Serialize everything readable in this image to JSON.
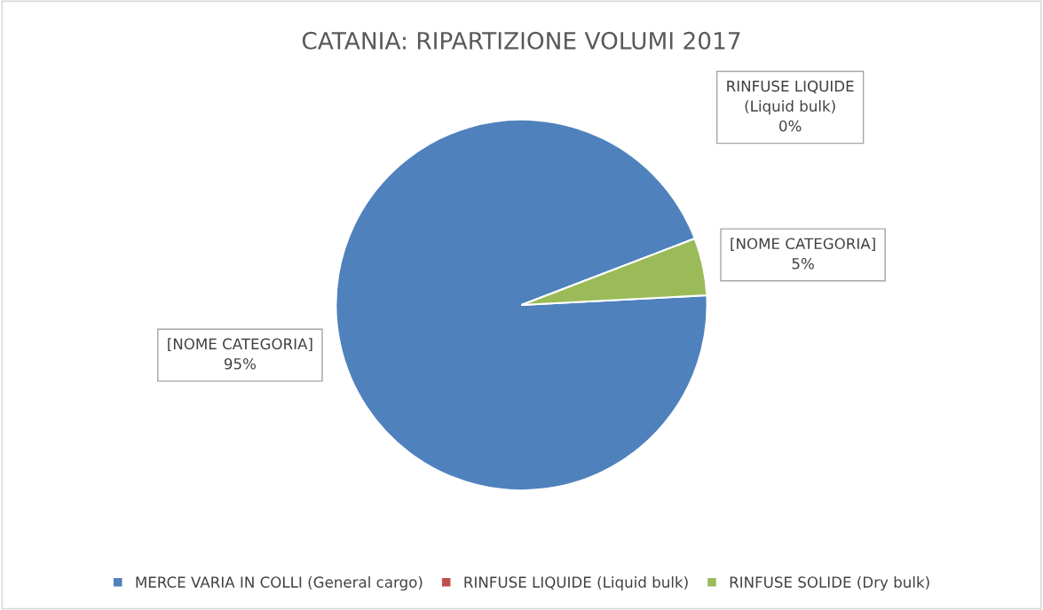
{
  "chart_data": {
    "type": "pie",
    "title": "CATANIA: RIPARTIZIONE VOLUMI 2017",
    "categories": [
      "MERCE VARIA IN COLLI (General cargo)",
      "RINFUSE LIQUIDE (Liquid bulk)",
      "RINFUSE SOLIDE (Dry bulk)"
    ],
    "values": [
      95,
      0,
      5
    ],
    "colors": [
      "#4f81bd",
      "#c0504d",
      "#9bbb59"
    ],
    "value_labels": [
      "[NOME CATEGORIA]\n95%",
      "RINFUSE LIQUIDE\n(Liquid bulk)\n0%",
      "[NOME CATEGORIA]\n5%"
    ],
    "legend": "bottom"
  }
}
